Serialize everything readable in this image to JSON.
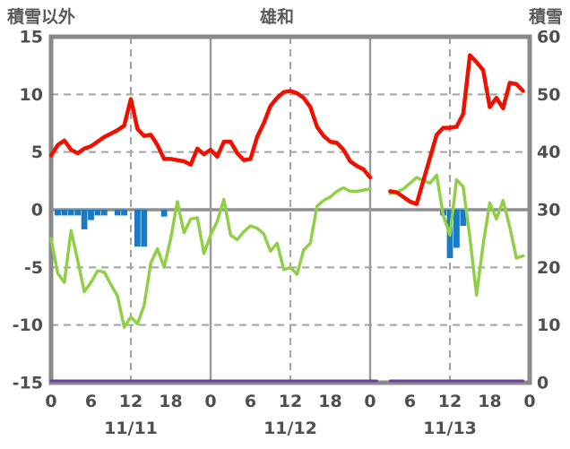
{
  "header": {
    "left_axis_title": "積雪以外",
    "title": "雄和",
    "right_axis_title": "積雪"
  },
  "colors": {
    "red_line": "#ee1100",
    "green_line": "#8fd048",
    "blue_bars": "#1a7ac2",
    "purple_line": "#6a3fa0",
    "border_gray": "#8a8a8a",
    "grid_gray": "#a3a3a3",
    "text_gray": "#4f4f4f"
  },
  "chart_data": {
    "type": "line",
    "title": "雄和",
    "left_axis": {
      "label": "積雪以外",
      "min": -15,
      "max": 15,
      "ticks": [
        15,
        10,
        5,
        0,
        -5,
        -10,
        -15
      ]
    },
    "right_axis": {
      "label": "積雪",
      "min": 0,
      "max": 60,
      "ticks": [
        60,
        50,
        40,
        30,
        20,
        10,
        0
      ]
    },
    "x_axis": {
      "hours_span": 72,
      "tick_interval_hours": 6,
      "tick_labels": [
        "0",
        "6",
        "12",
        "18",
        "0",
        "6",
        "12",
        "18",
        "0",
        "6",
        "12",
        "18",
        "0"
      ],
      "day_labels": [
        "11/11",
        "11/12",
        "11/13"
      ],
      "dashed_vertical_hours": [
        12,
        36,
        60
      ],
      "solid_vertical_hours": [
        24,
        48
      ]
    },
    "grid": {
      "dashed_horizontal_values": [
        10,
        5,
        -5,
        -10
      ],
      "solid_zero_line": true
    },
    "missing_data_hours": [
      49,
      50
    ],
    "series": [
      {
        "name": "red-line",
        "kind": "line",
        "axis": "left",
        "color": "#ee1100",
        "stroke_width": 4.5,
        "values": [
          4.7,
          5.6,
          6.0,
          5.2,
          4.9,
          5.3,
          5.5,
          5.9,
          6.3,
          6.6,
          6.9,
          7.3,
          9.6,
          7.0,
          6.4,
          6.5,
          5.6,
          4.4,
          4.4,
          4.3,
          4.2,
          3.9,
          5.3,
          4.8,
          5.2,
          4.6,
          5.9,
          5.9,
          4.9,
          4.3,
          4.4,
          6.3,
          7.5,
          9.0,
          9.7,
          10.2,
          10.3,
          10.1,
          9.7,
          8.9,
          7.2,
          6.4,
          5.9,
          5.8,
          5.2,
          4.2,
          3.8,
          3.5,
          2.8,
          null,
          null,
          1.6,
          1.5,
          1.1,
          0.7,
          0.5,
          2.5,
          4.5,
          6.5,
          7.1,
          7.1,
          7.2,
          8.3,
          13.4,
          12.8,
          12.1,
          8.9,
          9.7,
          8.8,
          11.0,
          10.9,
          10.3
        ]
      },
      {
        "name": "green-line",
        "kind": "line",
        "axis": "left",
        "color": "#8fd048",
        "stroke_width": 3.5,
        "values": [
          -2.5,
          -5.5,
          -6.3,
          -1.8,
          -4.4,
          -7.1,
          -6.3,
          -5.3,
          -5.4,
          -6.5,
          -7.5,
          -10.2,
          -9.3,
          -9.9,
          -8.3,
          -4.6,
          -3.4,
          -5.0,
          -2.5,
          0.7,
          -2.0,
          -0.8,
          -0.7,
          -3.8,
          -2.2,
          -1.0,
          0.9,
          -2.2,
          -2.6,
          -1.9,
          -1.4,
          -1.6,
          -2.1,
          -3.6,
          -2.9,
          -5.2,
          -5.0,
          -5.6,
          -3.5,
          -2.9,
          0.3,
          0.8,
          1.1,
          1.6,
          1.9,
          1.6,
          1.6,
          1.7,
          1.8,
          null,
          null,
          1.4,
          1.5,
          1.8,
          2.3,
          2.8,
          2.5,
          2.3,
          3.0,
          -0.5,
          -2.2,
          2.6,
          2.0,
          -2.4,
          -7.4,
          -3.0,
          0.6,
          -0.8,
          0.8,
          -1.5,
          -4.2,
          -4.0
        ]
      },
      {
        "name": "blue-bars",
        "kind": "bar",
        "axis": "left",
        "color": "#1a7ac2",
        "values": [
          0,
          -0.5,
          -0.5,
          -0.5,
          -0.5,
          -1.7,
          -0.9,
          -0.5,
          -0.5,
          0,
          -0.5,
          -0.5,
          0,
          -3.2,
          -3.2,
          0,
          0,
          -0.6,
          0,
          0,
          0,
          0,
          0,
          0,
          0,
          0,
          0,
          0,
          0,
          0,
          0,
          0,
          0,
          0,
          0,
          0,
          0,
          0,
          0,
          0,
          0,
          0,
          0,
          0,
          0,
          0,
          0,
          0,
          0,
          0,
          0,
          0,
          0,
          0,
          0,
          0,
          0,
          0,
          0,
          -0.5,
          -4.2,
          -3.3,
          -1.4,
          0,
          0,
          0,
          0,
          0,
          0,
          0,
          0,
          0
        ]
      },
      {
        "name": "purple-line",
        "kind": "line",
        "axis": "right",
        "color": "#6a3fa0",
        "stroke_width": 3,
        "values": [
          0,
          0,
          0,
          0,
          0,
          0,
          0,
          0,
          0,
          0,
          0,
          0,
          0,
          0,
          0,
          0,
          0,
          0,
          0,
          0,
          0,
          0,
          0,
          0,
          0,
          0,
          0,
          0,
          0,
          0,
          0,
          0,
          0,
          0,
          0,
          0,
          0,
          0,
          0,
          0,
          0,
          0,
          0,
          0,
          0,
          0,
          0,
          0,
          0,
          0,
          null,
          0,
          0,
          0,
          0,
          0,
          0,
          0,
          0,
          0,
          0,
          0,
          0,
          0,
          0,
          0,
          0,
          0,
          0,
          0,
          0,
          0
        ]
      }
    ]
  }
}
